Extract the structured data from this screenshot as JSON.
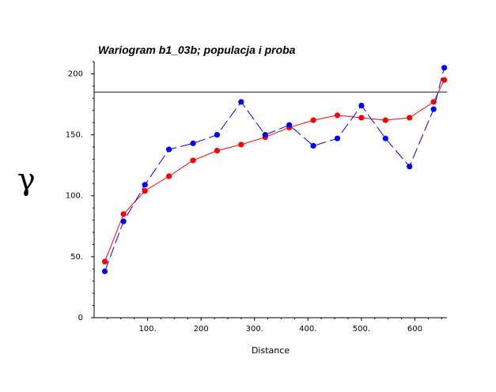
{
  "chart_data": {
    "type": "line",
    "title": "Wariogram b1_03b; populacja i proba",
    "xlabel": "Distance",
    "ylabel": "γ",
    "xlim": [
      0,
      660
    ],
    "ylim": [
      0,
      210
    ],
    "x_ticks": [
      {
        "value": 100,
        "label": "100."
      },
      {
        "value": 200,
        "label": "200"
      },
      {
        "value": 300,
        "label": "300."
      },
      {
        "value": 400,
        "label": "400."
      },
      {
        "value": 500,
        "label": "500."
      },
      {
        "value": 600,
        "label": "600"
      }
    ],
    "y_ticks": [
      {
        "value": 0,
        "label": "0"
      },
      {
        "value": 50,
        "label": "50."
      },
      {
        "value": 100,
        "label": "100."
      },
      {
        "value": 150,
        "label": "150."
      },
      {
        "value": 200,
        "label": "200"
      }
    ],
    "sill": 185,
    "series": [
      {
        "color": "#ff0000",
        "dashed": false,
        "x": [
          20,
          55,
          95,
          140,
          185,
          230,
          275,
          320,
          365,
          410,
          455,
          500,
          545,
          590,
          635,
          655
        ],
        "y": [
          46,
          85,
          104,
          116,
          129,
          137,
          142,
          148,
          156,
          162,
          166,
          164,
          162,
          164,
          177,
          195
        ]
      },
      {
        "color": "#0000ff",
        "dashed": true,
        "x": [
          20,
          55,
          95,
          140,
          185,
          230,
          275,
          320,
          365,
          410,
          455,
          500,
          545,
          590,
          635,
          655
        ],
        "y": [
          38,
          79,
          109,
          138,
          143,
          150,
          177,
          150,
          158,
          141,
          147,
          174,
          147,
          124,
          171,
          205
        ]
      }
    ]
  }
}
